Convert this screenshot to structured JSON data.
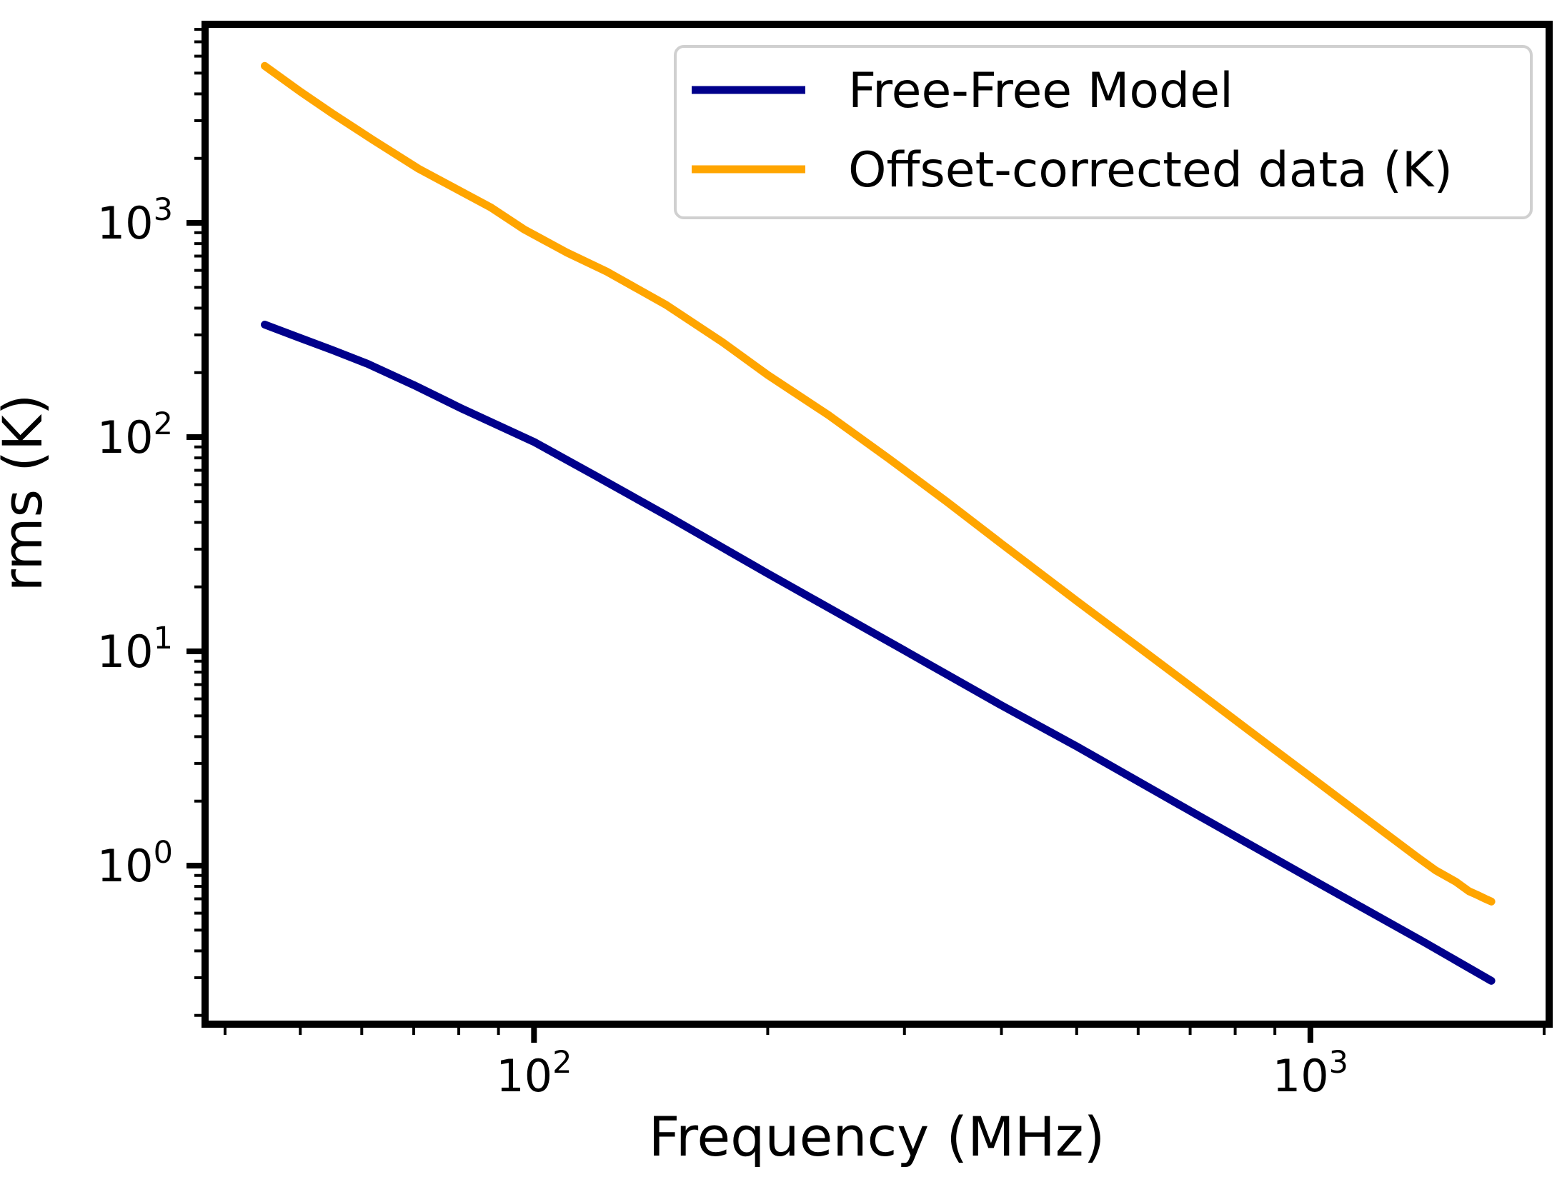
{
  "figure": {
    "background": "#ffffff",
    "text_color": "#000000",
    "spine_color": "#000000"
  },
  "chart_data": {
    "type": "line",
    "title": "",
    "xlabel": "Frequency (MHz)",
    "ylabel": "rms (K)",
    "x_scale": "log",
    "y_scale": "log",
    "xlim": [
      37.7,
      2030
    ],
    "ylim": [
      0.182,
      8450
    ],
    "grid": false,
    "x_major_ticks": [
      {
        "value": 100,
        "label_base": "10",
        "label_exp": "2"
      },
      {
        "value": 1000,
        "label_base": "10",
        "label_exp": "3"
      }
    ],
    "y_major_ticks": [
      {
        "value": 1,
        "label_base": "10",
        "label_exp": "0"
      },
      {
        "value": 10,
        "label_base": "10",
        "label_exp": "1"
      },
      {
        "value": 100,
        "label_base": "10",
        "label_exp": "2"
      },
      {
        "value": 1000,
        "label_base": "10",
        "label_exp": "3"
      }
    ],
    "legend": {
      "position": "upper right",
      "edge_color": "#d0d0d0",
      "face_color": "#ffffff",
      "entries": [
        "Free-Free Model",
        "Offset-corrected data (K)"
      ]
    },
    "series": [
      {
        "name": "Free-Free Model",
        "color": "#00008b",
        "points": [
          [
            45,
            335
          ],
          [
            50,
            290
          ],
          [
            55,
            255
          ],
          [
            61,
            220
          ],
          [
            70,
            175
          ],
          [
            81,
            135
          ],
          [
            100,
            95
          ],
          [
            120,
            66
          ],
          [
            150,
            42
          ],
          [
            200,
            23.1
          ],
          [
            300,
            10.1
          ],
          [
            400,
            5.6
          ],
          [
            500,
            3.6
          ],
          [
            700,
            1.8
          ],
          [
            1000,
            0.87
          ],
          [
            1400,
            0.44
          ],
          [
            1710,
            0.29
          ]
        ]
      },
      {
        "name": "Offset-corrected data (K)",
        "color": "#ffa500",
        "points": [
          [
            45,
            5400
          ],
          [
            50,
            4100
          ],
          [
            55,
            3240
          ],
          [
            62,
            2440
          ],
          [
            71,
            1790
          ],
          [
            88,
            1180
          ],
          [
            97,
            934
          ],
          [
            110,
            730
          ],
          [
            124,
            593
          ],
          [
            148,
            414
          ],
          [
            175,
            277
          ],
          [
            200,
            195
          ],
          [
            240,
            126
          ],
          [
            287,
            79
          ],
          [
            340,
            50
          ],
          [
            400,
            31.8
          ],
          [
            500,
            17.2
          ],
          [
            600,
            10.5
          ],
          [
            700,
            6.9
          ],
          [
            850,
            4.05
          ],
          [
            1000,
            2.6
          ],
          [
            1200,
            1.58
          ],
          [
            1371,
            1.1
          ],
          [
            1450,
            0.95
          ],
          [
            1540,
            0.84
          ],
          [
            1600,
            0.76
          ],
          [
            1640,
            0.73
          ],
          [
            1680,
            0.7
          ],
          [
            1695,
            0.69
          ],
          [
            1710,
            0.68
          ]
        ]
      }
    ]
  }
}
